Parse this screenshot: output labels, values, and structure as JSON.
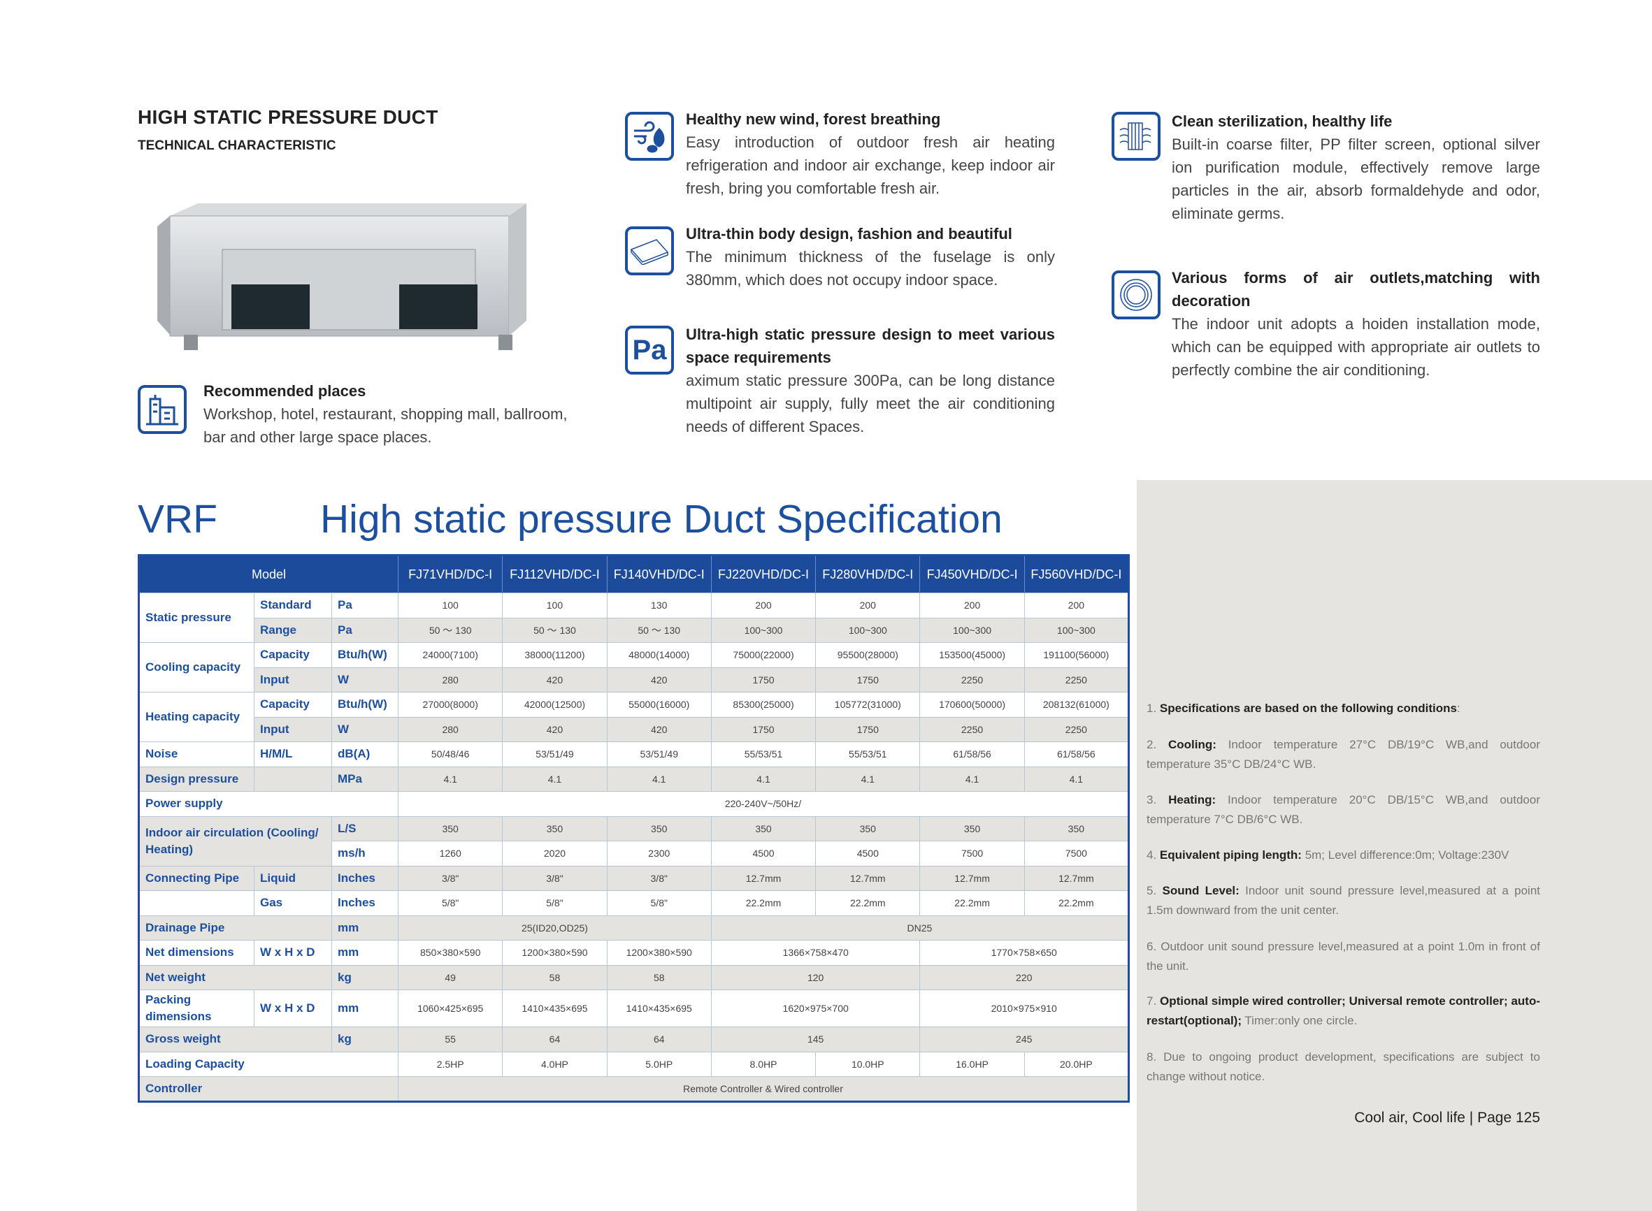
{
  "header": {
    "title": "HIGH STATIC PRESSURE DUCT",
    "subtitle": "TECHNICAL CHARACTERISTIC"
  },
  "recommended": {
    "icon": "building-icon",
    "title": "Recommended places",
    "body": "Workshop, hotel, restaurant, shopping mall, ballroom, bar and other large space places."
  },
  "features": [
    {
      "icon": "wind-leaf-icon",
      "title": "Healthy new wind, forest breathing",
      "body": "Easy introduction of outdoor fresh air heating refrigeration and indoor air exchange, keep indoor air fresh, bring you comfortable fresh air."
    },
    {
      "icon": "thin-panel-icon",
      "title": "Ultra-thin body design, fashion and beautiful",
      "body": "The minimum thickness of the fuselage is only 380mm, which does not occupy indoor space."
    },
    {
      "icon": "pa-icon",
      "icon_text": "Pa",
      "title": "Ultra-high static pressure design to meet various space requirements",
      "body": "aximum static pressure 300Pa, can be long distance multipoint air supply, fully meet the air conditioning needs of different Spaces."
    },
    {
      "icon": "filter-icon",
      "title": "Clean sterilization, healthy life",
      "body": "Built-in coarse filter, PP filter screen, optional silver ion purification module, effectively remove large particles in the air, absorb formaldehyde and odor, eliminate germs."
    },
    {
      "icon": "air-outlet-icon",
      "title": "Various forms of air outlets,matching with decoration",
      "body": "The indoor unit adopts a hoiden installation mode, which can be equipped with appropriate air outlets to perfectly combine the air conditioning."
    }
  ],
  "spec": {
    "brand": "VRF",
    "title": "High static pressure Duct Specification",
    "header_label": "Model",
    "models": [
      "FJ71VHD/DC-I",
      "FJ112VHD/DC-I",
      "FJ140VHD/DC-I",
      "FJ220VHD/DC-I",
      "FJ280VHD/DC-I",
      "FJ450VHD/DC-I",
      "FJ560VHD/DC-I"
    ],
    "rows": [
      [
        {
          "t": "Static pressure",
          "l": 1,
          "rs": 2
        },
        {
          "t": "Standard",
          "l": 1
        },
        {
          "t": "Pa",
          "l": 1
        },
        {
          "t": "100"
        },
        {
          "t": "100"
        },
        {
          "t": "130"
        },
        {
          "t": "200"
        },
        {
          "t": "200"
        },
        {
          "t": "200"
        },
        {
          "t": "200"
        }
      ],
      [
        {
          "t": "Range",
          "l": 1
        },
        {
          "t": "Pa",
          "l": 1
        },
        {
          "t": "50 ～ 130"
        },
        {
          "t": "50 ～ 130"
        },
        {
          "t": "50 ～ 130"
        },
        {
          "t": "100~300"
        },
        {
          "t": "100~300"
        },
        {
          "t": "100~300"
        },
        {
          "t": "100~300"
        }
      ],
      [
        {
          "t": "Cooling capacity",
          "l": 1,
          "rs": 2
        },
        {
          "t": "Capacity",
          "l": 1
        },
        {
          "t": "Btu/h(W)",
          "l": 1
        },
        {
          "t": "24000(7100)"
        },
        {
          "t": "38000(11200)"
        },
        {
          "t": "48000(14000)"
        },
        {
          "t": "75000(22000)"
        },
        {
          "t": "95500(28000)"
        },
        {
          "t": "153500(45000)"
        },
        {
          "t": "191100(56000)"
        }
      ],
      [
        {
          "t": "Input",
          "l": 1
        },
        {
          "t": "W",
          "l": 1
        },
        {
          "t": "280"
        },
        {
          "t": "420"
        },
        {
          "t": "420"
        },
        {
          "t": "1750"
        },
        {
          "t": "1750"
        },
        {
          "t": "2250"
        },
        {
          "t": "2250"
        }
      ],
      [
        {
          "t": "Heating capacity",
          "l": 1,
          "rs": 2
        },
        {
          "t": "Capacity",
          "l": 1
        },
        {
          "t": "Btu/h(W)",
          "l": 1
        },
        {
          "t": "27000(8000)"
        },
        {
          "t": "42000(12500)"
        },
        {
          "t": "55000(16000)"
        },
        {
          "t": "85300(25000)"
        },
        {
          "t": "105772(31000)"
        },
        {
          "t": "170600(50000)"
        },
        {
          "t": "208132(61000)"
        }
      ],
      [
        {
          "t": "Input",
          "l": 1
        },
        {
          "t": "W",
          "l": 1
        },
        {
          "t": "280"
        },
        {
          "t": "420"
        },
        {
          "t": "420"
        },
        {
          "t": "1750"
        },
        {
          "t": "1750"
        },
        {
          "t": "2250"
        },
        {
          "t": "2250"
        }
      ],
      [
        {
          "t": "Noise",
          "l": 1
        },
        {
          "t": "H/M/L",
          "l": 1
        },
        {
          "t": "dB(A)",
          "l": 1
        },
        {
          "t": "50/48/46"
        },
        {
          "t": "53/51/49"
        },
        {
          "t": "53/51/49"
        },
        {
          "t": "55/53/51"
        },
        {
          "t": "55/53/51"
        },
        {
          "t": "61/58/56"
        },
        {
          "t": "61/58/56"
        }
      ],
      [
        {
          "t": "Design pressure",
          "l": 1
        },
        {
          "t": "",
          "l": 1
        },
        {
          "t": "MPa",
          "l": 1
        },
        {
          "t": "4.1"
        },
        {
          "t": "4.1"
        },
        {
          "t": "4.1"
        },
        {
          "t": "4.1"
        },
        {
          "t": "4.1"
        },
        {
          "t": "4.1"
        },
        {
          "t": "4.1"
        }
      ],
      [
        {
          "t": "Power supply",
          "l": 1,
          "cs": 3
        },
        {
          "t": "220-240V~/50Hz/",
          "cs": 7
        }
      ],
      [
        {
          "t": "Indoor air circulation (Cooling/ Heating)",
          "l": 1,
          "cs": 2,
          "rs": 2
        },
        {
          "t": "L/S",
          "l": 1
        },
        {
          "t": "350"
        },
        {
          "t": "350"
        },
        {
          "t": "350"
        },
        {
          "t": "350"
        },
        {
          "t": "350"
        },
        {
          "t": "350"
        },
        {
          "t": "350"
        }
      ],
      [
        {
          "t": "ms/h",
          "l": 1
        },
        {
          "t": "1260"
        },
        {
          "t": "2020"
        },
        {
          "t": "2300"
        },
        {
          "t": "4500"
        },
        {
          "t": "4500"
        },
        {
          "t": "7500"
        },
        {
          "t": "7500"
        }
      ],
      [
        {
          "t": "Connecting Pipe",
          "l": 1
        },
        {
          "t": "Liquid",
          "l": 1
        },
        {
          "t": "Inches",
          "l": 1
        },
        {
          "t": "3/8\""
        },
        {
          "t": "3/8\""
        },
        {
          "t": "3/8\""
        },
        {
          "t": "12.7mm"
        },
        {
          "t": "12.7mm"
        },
        {
          "t": "12.7mm"
        },
        {
          "t": "12.7mm"
        }
      ],
      [
        {
          "t": "",
          "l": 1
        },
        {
          "t": "Gas",
          "l": 1
        },
        {
          "t": "Inches",
          "l": 1
        },
        {
          "t": "5/8\""
        },
        {
          "t": "5/8\""
        },
        {
          "t": "5/8\""
        },
        {
          "t": "22.2mm"
        },
        {
          "t": "22.2mm"
        },
        {
          "t": "22.2mm"
        },
        {
          "t": "22.2mm"
        }
      ],
      [
        {
          "t": "Drainage Pipe",
          "l": 1,
          "cs": 2
        },
        {
          "t": "mm",
          "l": 1
        },
        {
          "t": "25(ID20,OD25)",
          "cs": 3
        },
        {
          "t": "DN25",
          "cs": 4
        }
      ],
      [
        {
          "t": "Net dimensions",
          "l": 1
        },
        {
          "t": "W x H x D",
          "l": 1
        },
        {
          "t": "mm",
          "l": 1
        },
        {
          "t": "850×380×590"
        },
        {
          "t": "1200×380×590"
        },
        {
          "t": "1200×380×590"
        },
        {
          "t": "1366×758×470",
          "cs": 2
        },
        {
          "t": "1770×758×650",
          "cs": 2
        }
      ],
      [
        {
          "t": "Net weight",
          "l": 1,
          "cs": 2
        },
        {
          "t": "kg",
          "l": 1
        },
        {
          "t": "49"
        },
        {
          "t": "58"
        },
        {
          "t": "58"
        },
        {
          "t": "120",
          "cs": 2
        },
        {
          "t": "220",
          "cs": 2
        }
      ],
      [
        {
          "t": "Packing dimensions",
          "l": 1
        },
        {
          "t": "W x H x D",
          "l": 1
        },
        {
          "t": "mm",
          "l": 1
        },
        {
          "t": "1060×425×695"
        },
        {
          "t": "1410×435×695"
        },
        {
          "t": "1410×435×695"
        },
        {
          "t": "1620×975×700",
          "cs": 2
        },
        {
          "t": "2010×975×910",
          "cs": 2
        }
      ],
      [
        {
          "t": "Gross weight",
          "l": 1,
          "cs": 2
        },
        {
          "t": "kg",
          "l": 1
        },
        {
          "t": "55"
        },
        {
          "t": "64"
        },
        {
          "t": "64"
        },
        {
          "t": "145",
          "cs": 2
        },
        {
          "t": "245",
          "cs": 2
        }
      ],
      [
        {
          "t": "Loading Capacity",
          "l": 1,
          "cs": 3
        },
        {
          "t": "2.5HP"
        },
        {
          "t": "4.0HP"
        },
        {
          "t": "5.0HP"
        },
        {
          "t": "8.0HP"
        },
        {
          "t": "10.0HP"
        },
        {
          "t": "16.0HP"
        },
        {
          "t": "20.0HP"
        }
      ],
      [
        {
          "t": "Controller",
          "l": 1,
          "cs": 3
        },
        {
          "t": "Remote Controller & Wired controller",
          "cs": 7
        }
      ]
    ]
  },
  "notes": [
    {
      "num": "1.",
      "bold": "Specifications are based on the following conditions",
      "text": ":"
    },
    {
      "num": "2.",
      "bold": "Cooling:",
      "text": " Indoor temperature 27°C DB/19°C WB,and outdoor temperature 35°C DB/24°C WB."
    },
    {
      "num": "3.",
      "bold": "Heating:",
      "text": " Indoor temperature 20°C DB/15°C WB,and outdoor temperature 7°C DB/6°C WB."
    },
    {
      "num": "4.",
      "bold": "Equivalent piping length:",
      "text": " 5m; Level difference:0m; Voltage:230V"
    },
    {
      "num": "5.",
      "bold": "Sound Level:",
      "text": " Indoor unit sound pressure level,measured at a point 1.5m downward from the unit center."
    },
    {
      "num": "6.",
      "bold": "",
      "text": " Outdoor unit sound pressure level,measured at a point 1.0m in front of the unit."
    },
    {
      "num": "7.",
      "bold": "Optional simple wired controller; Universal remote controller; auto-restart(optional);",
      "text": " Timer:only one circle."
    },
    {
      "num": "8.",
      "bold": "",
      "text": " Due to ongoing product development, specifications are subject to change without notice."
    }
  ],
  "footer": "Cool air, Cool life |  Page  125",
  "colors": {
    "accent": "#1d4f9f",
    "header_bg": "#1d4b9c",
    "panel_bg": "#e5e4e0",
    "row_grey": "#e4e3df"
  }
}
